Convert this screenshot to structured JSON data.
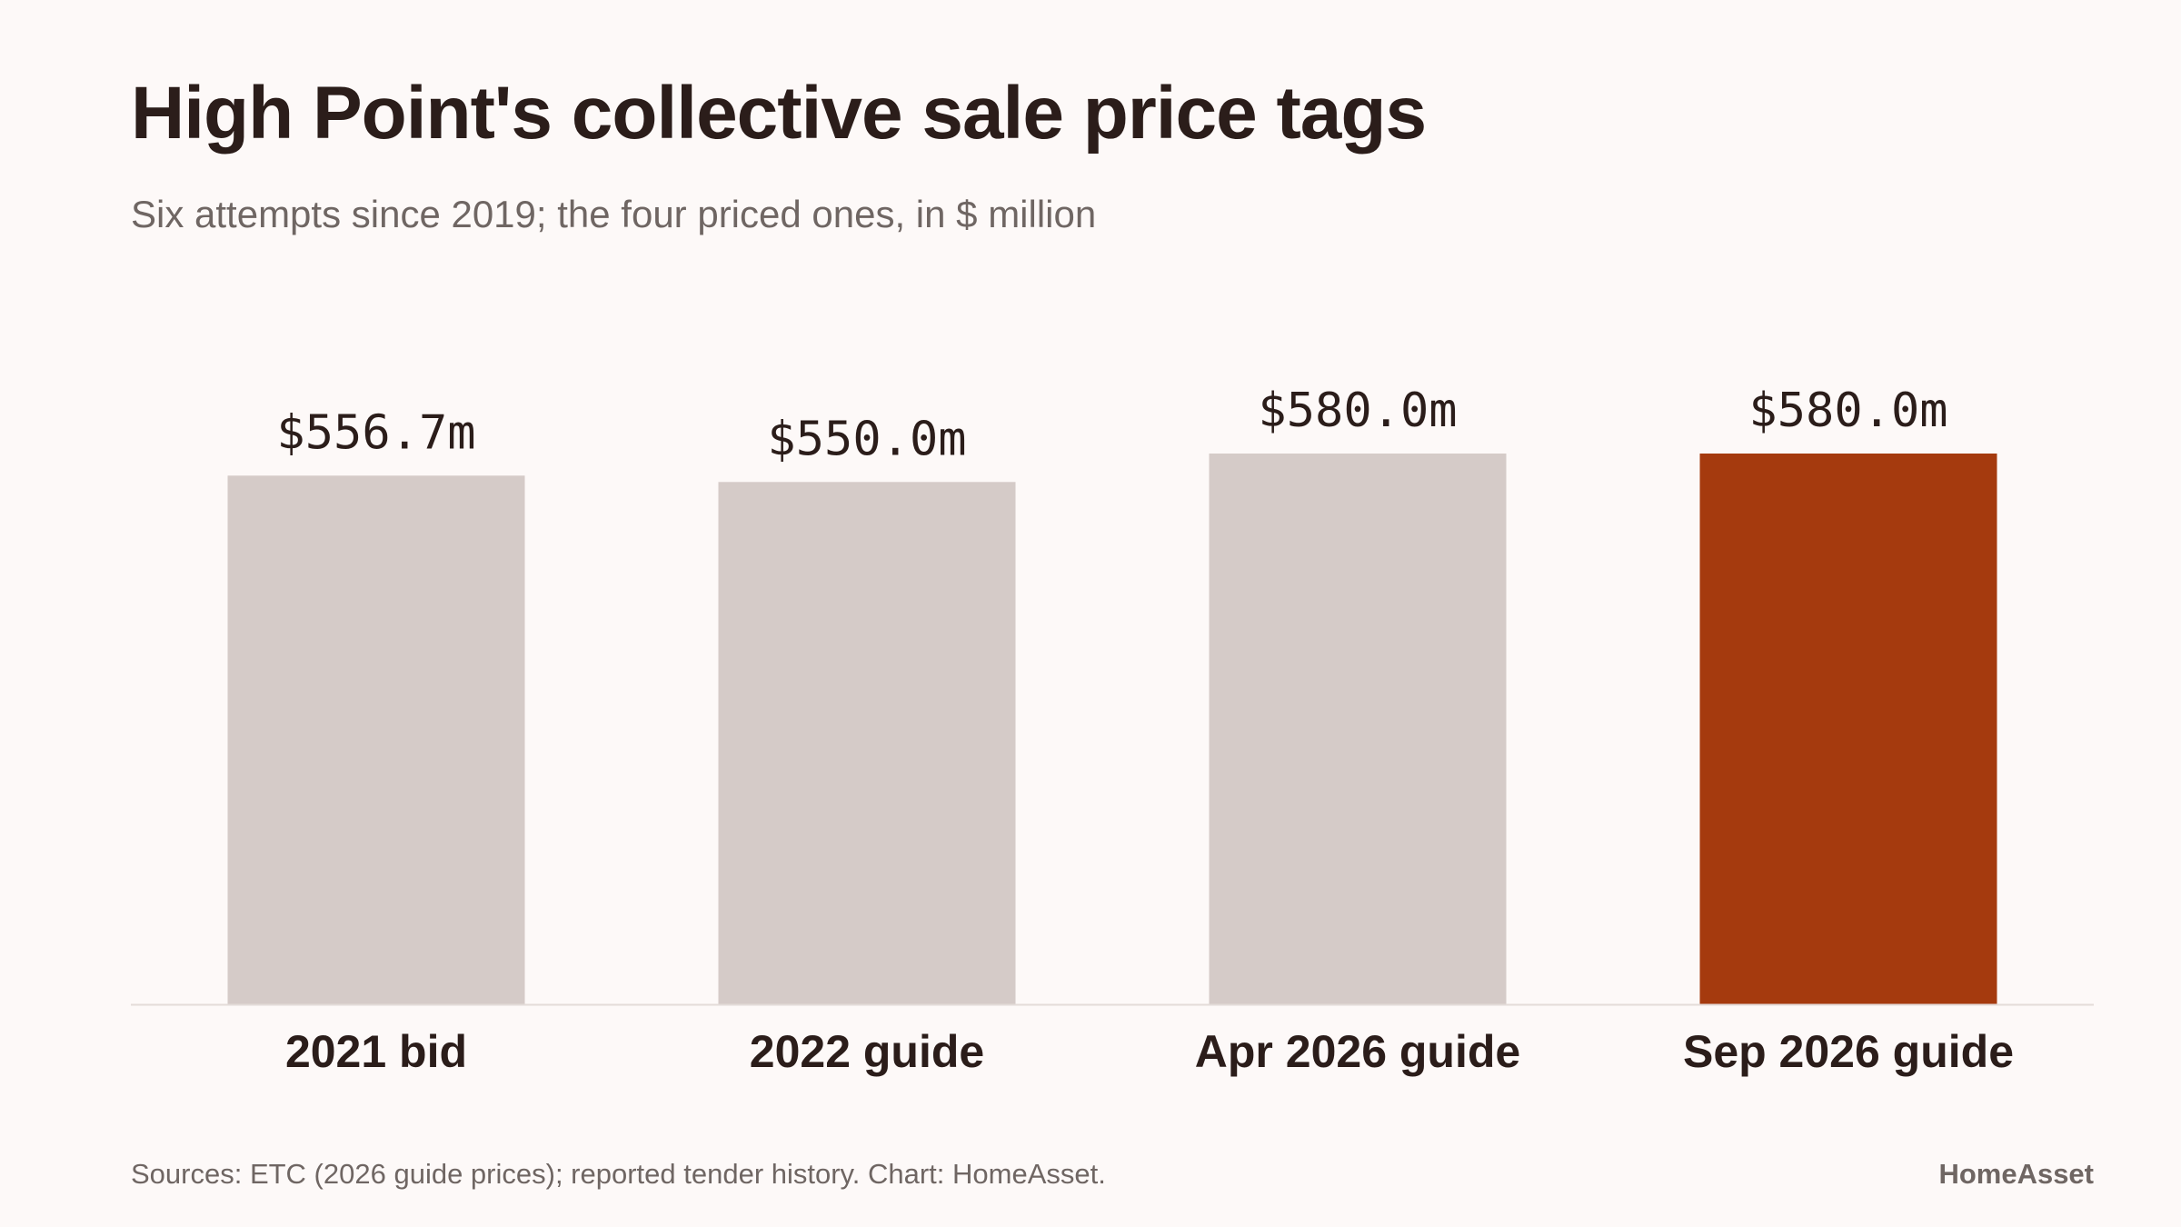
{
  "title": "High Point's collective sale price tags",
  "subtitle": "Six attempts since 2019; the four priced ones, in $ million",
  "footer": {
    "source": "Sources: ETC (2026 guide prices); reported tender history. Chart: HomeAsset.",
    "brand": "HomeAsset"
  },
  "colors": {
    "bar": "#d5cbc8",
    "highlight": "#a53a0e",
    "baseline": "#e4dcd9"
  },
  "chart_data": {
    "type": "bar",
    "categories": [
      "2021 bid",
      "2022 guide",
      "Apr 2026 guide",
      "Sep 2026 guide"
    ],
    "values": [
      556.7,
      550.0,
      580.0,
      580.0
    ],
    "value_labels": [
      "$556.7m",
      "$550.0m",
      "$580.0m",
      "$580.0m"
    ],
    "highlight_index": 3,
    "ylim": [
      0,
      580
    ],
    "grid": false,
    "legend": "none",
    "xlabel": "",
    "ylabel": ""
  }
}
